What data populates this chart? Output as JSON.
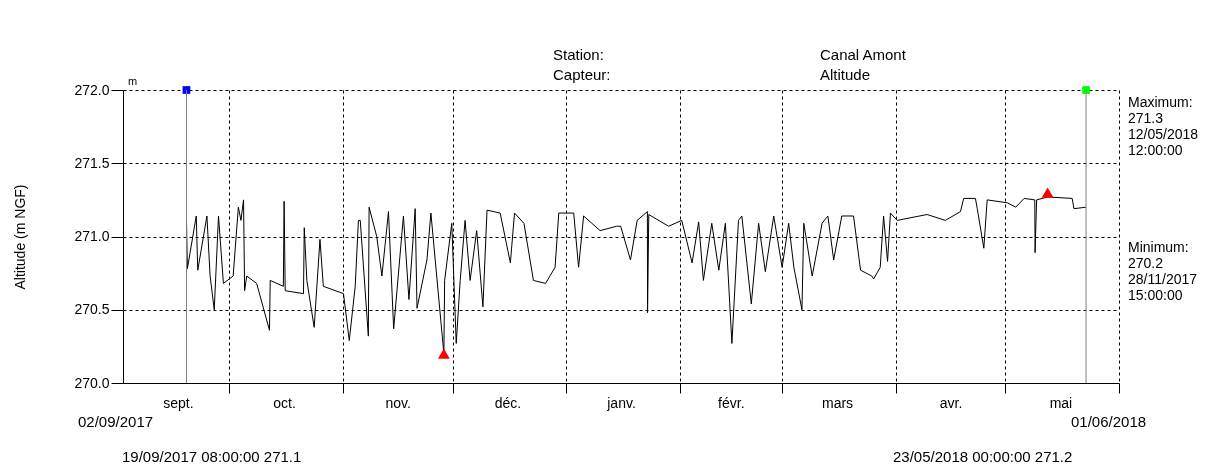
{
  "chart_data": {
    "type": "line",
    "ylabel": "Altitude (m NGF)",
    "annotations": [
      "m",
      "Station:",
      "Canal Amont",
      "Capteur:",
      "Altitude",
      "Maximum:\n  271.3\n  12/05/2018\n  12:00:00",
      "Minimum:\n  270.2\n  28/11/2017\n  15:00:00",
      "02/09/2017",
      "01/06/2018",
      "19/09/2017 08:00:00   271.1",
      "23/05/2018 00:00:00   271.2"
    ],
    "xlim": [
      "2017-09-02",
      "2018-06-01"
    ],
    "xticks": [
      {
        "value": "2017-09-17",
        "label": "sept."
      },
      {
        "value": "2017-10-01",
        "label": null
      },
      {
        "value": "2017-10-16",
        "label": "oct."
      },
      {
        "value": "2017-11-01",
        "label": null
      },
      {
        "value": "2017-11-16",
        "label": "nov."
      },
      {
        "value": "2017-12-01",
        "label": null
      },
      {
        "value": "2017-12-16",
        "label": "déc."
      },
      {
        "value": "2018-01-01",
        "label": null
      },
      {
        "value": "2018-01-16",
        "label": "janv."
      },
      {
        "value": "2018-02-01",
        "label": null
      },
      {
        "value": "2018-02-15",
        "label": "févr."
      },
      {
        "value": "2018-03-01",
        "label": null
      },
      {
        "value": "2018-03-16",
        "label": "mars"
      },
      {
        "value": "2018-04-01",
        "label": null
      },
      {
        "value": "2018-04-16",
        "label": "avr."
      },
      {
        "value": "2018-05-01",
        "label": null
      },
      {
        "value": "2018-05-16",
        "label": "mai"
      },
      {
        "value": "2018-06-01",
        "label": null
      }
    ],
    "ylim": [
      270.0,
      272.0
    ],
    "yticks": [
      {
        "value": 270,
        "label": "270.0"
      },
      270.5,
      {
        "value": 271,
        "label": "271.0"
      },
      271.5,
      {
        "value": 272,
        "label": "272.0"
      }
    ],
    "grid": true,
    "ref_lines": [
      {
        "axis": "x",
        "value": "2017-09-19T08:00",
        "color": "#808080"
      },
      {
        "axis": "x",
        "value": "2018-05-23T00:00",
        "color": "#808080"
      }
    ],
    "series": [
      {
        "color": "#000000",
        "x": [
          "2017-09-19T08:00",
          "2017-09-19T14:00",
          "2017-09-22T00:00",
          "2017-09-22T10:00",
          "2017-09-24T22:00",
          "2017-09-25T19:00",
          "2017-09-26T22:00",
          "2017-09-28T02:00",
          "2017-09-29T10:00",
          "2017-10-02T02:00",
          "2017-10-03T12:00",
          "2017-10-04T05:00",
          "2017-10-04T22:00",
          "2017-10-05T05:00",
          "2017-10-05T19:00",
          "2017-10-08T12:00",
          "2017-10-12T00:00",
          "2017-10-12T05:00",
          "2017-10-15T19:00",
          "2017-10-16T00:00",
          "2017-10-16T07:00",
          "2017-10-21T07:00",
          "2017-10-21T12:00",
          "2017-10-22T05:00",
          "2017-10-24T05:00",
          "2017-10-25T19:00",
          "2017-10-26T17:00",
          "2017-11-01T05:00",
          "2017-11-02T19:00",
          "2017-11-04T10:00",
          "2017-11-05T07:00",
          "2017-11-05T19:00",
          "2017-11-08T00:00",
          "2017-11-08T05:00",
          "2017-11-10T07:00",
          "2017-11-11T17:00",
          "2017-11-13T12:00",
          "2017-11-14T22:00",
          "2017-11-17T14:00",
          "2017-11-19T02:00",
          "2017-11-20T19:00",
          "2017-11-21T07:00",
          "2017-11-24T00:00",
          "2017-11-25T02:00",
          "2017-11-28T15:00",
          "2017-11-28T20:00",
          "2017-11-30T19:00",
          "2017-12-02T00:00",
          "2017-12-03T02:00",
          "2017-12-04T10:00",
          "2017-12-05T19:00",
          "2017-12-07T14:00",
          "2017-12-09T07:00",
          "2017-12-10T10:00",
          "2017-12-14T00:00",
          "2017-12-16T19:00",
          "2017-12-17T22:00",
          "2017-12-20T12:00",
          "2017-12-23T02:00",
          "2017-12-26T10:00",
          "2017-12-29T00:00",
          "2017-12-30T00:00",
          "2018-01-03T02:00",
          "2018-01-04T10:00",
          "2018-01-05T19:00",
          "2018-01-10T07:00",
          "2018-01-14T19:00",
          "2018-01-15T22:00",
          "2018-01-18T14:00",
          "2018-01-20T10:00",
          "2018-01-23T05:00",
          "2018-01-23T06:00",
          "2018-01-23T14:00",
          "2018-01-29T00:00",
          "2018-02-01T14:00",
          "2018-02-04T10:00",
          "2018-02-06T05:00",
          "2018-02-07T12:00",
          "2018-02-09T19:00",
          "2018-02-11T17:00",
          "2018-02-13T12:00",
          "2018-02-15T07:00",
          "2018-02-17T02:00",
          "2018-02-18T00:00",
          "2018-02-20T14:00",
          "2018-02-22T14:00",
          "2018-02-24T10:00",
          "2018-02-26T17:00",
          "2018-03-01T00:00",
          "2018-03-02T19:00",
          "2018-03-04T05:00",
          "2018-03-06T10:00",
          "2018-03-06T22:00",
          "2018-03-09T05:00",
          "2018-03-11T22:00",
          "2018-03-13T12:00",
          "2018-03-15T02:00",
          "2018-03-17T07:00",
          "2018-03-20T12:00",
          "2018-03-22T10:00",
          "2018-03-25T12:00",
          "2018-03-26T00:00",
          "2018-03-27T19:00",
          "2018-03-28T17:00",
          "2018-03-29T19:00",
          "2018-03-30T14:00",
          "2018-04-01T10:00",
          "2018-04-09T14:00",
          "2018-04-14T14:00",
          "2018-04-18T17:00",
          "2018-04-19T14:00",
          "2018-04-22T19:00",
          "2018-04-23T07:00",
          "2018-04-25T02:00",
          "2018-04-26T00:00",
          "2018-05-01T12:00",
          "2018-05-03T19:00",
          "2018-05-06T02:00",
          "2018-05-09T00:00",
          "2018-05-09T02:00",
          "2018-05-09T12:00",
          "2018-05-12T12:00",
          "2018-05-19T05:00",
          "2018-05-19T17:00",
          "2018-05-23T00:00"
        ],
        "values": [
          271.12,
          270.78,
          271.14,
          270.77,
          271.14,
          270.73,
          270.5,
          271.14,
          270.68,
          270.73,
          271.2,
          271.11,
          271.25,
          270.63,
          270.73,
          270.68,
          270.36,
          270.7,
          270.66,
          271.24,
          270.63,
          270.61,
          271.06,
          270.7,
          270.38,
          270.98,
          270.66,
          270.61,
          270.29,
          270.66,
          271.11,
          271.11,
          270.32,
          271.2,
          271.0,
          270.73,
          271.17,
          270.37,
          271.14,
          270.57,
          271.19,
          270.51,
          270.84,
          271.16,
          270.2,
          270.7,
          271.09,
          270.27,
          270.7,
          271.11,
          270.7,
          271.04,
          270.52,
          271.18,
          271.16,
          270.82,
          271.16,
          271.09,
          270.7,
          270.68,
          270.79,
          271.16,
          271.16,
          270.79,
          271.14,
          271.04,
          271.07,
          271.07,
          270.84,
          271.11,
          271.17,
          270.48,
          271.15,
          271.07,
          271.11,
          270.82,
          271.1,
          270.7,
          271.09,
          270.77,
          271.09,
          270.27,
          271.11,
          271.14,
          270.54,
          271.09,
          270.76,
          271.14,
          270.79,
          271.09,
          270.79,
          270.5,
          271.09,
          270.73,
          271.09,
          271.14,
          270.84,
          271.14,
          271.14,
          270.77,
          270.73,
          270.71,
          270.79,
          271.14,
          270.83,
          271.16,
          271.11,
          271.15,
          271.11,
          271.17,
          271.26,
          271.26,
          271.19,
          270.92,
          271.25,
          271.23,
          271.2,
          271.26,
          271.25,
          270.89,
          271.25,
          271.27,
          271.26,
          271.19,
          271.2
        ]
      },
      {
        "type": "scatter",
        "marker": "triangle",
        "color": "#ff0000",
        "x": [
          "2017-11-28T15:00",
          "2018-05-12T12:00"
        ],
        "values": [
          270.2,
          271.3
        ]
      },
      {
        "type": "scatter",
        "marker": "square",
        "colors": [
          "#0000ff",
          "#00ff00"
        ],
        "x": [
          "2017-09-19T08:00",
          "2018-05-23T00:00"
        ],
        "values": [
          272.0,
          272.0
        ]
      }
    ]
  }
}
